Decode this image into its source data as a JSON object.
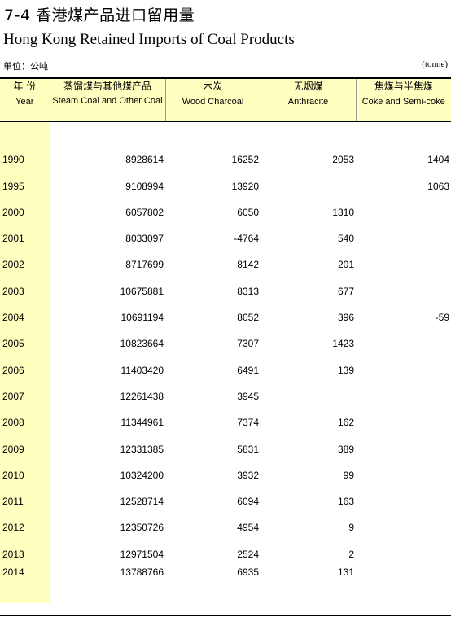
{
  "title": {
    "cn": "7-4   香港煤产品进口留用量",
    "en": "Hong Kong Retained Imports of Coal Products"
  },
  "unit": {
    "left": "单位：公吨",
    "right": "(tonne)"
  },
  "headers": [
    {
      "cn": "年 份",
      "en": "Year"
    },
    {
      "cn": "蒸馏煤与其他煤产品",
      "en": "Steam Coal and Other Coal"
    },
    {
      "cn": "木炭",
      "en": "Wood Charcoal"
    },
    {
      "cn": "无烟煤",
      "en": "Anthracite"
    },
    {
      "cn": "焦煤与半焦煤",
      "en": "Coke and Semi-coke"
    }
  ],
  "rows": [
    {
      "year": "1990",
      "steam": "8928614",
      "charcoal": "16252",
      "anthracite": "2053",
      "coke": "1404"
    },
    {
      "year": "1995",
      "steam": "9108994",
      "charcoal": "13920",
      "anthracite": "",
      "coke": "1063"
    },
    {
      "year": "2000",
      "steam": "6057802",
      "charcoal": "6050",
      "anthracite": "1310",
      "coke": ""
    },
    {
      "year": "2001",
      "steam": "8033097",
      "charcoal": "-4764",
      "anthracite": "540",
      "coke": ""
    },
    {
      "year": "2002",
      "steam": "8717699",
      "charcoal": "8142",
      "anthracite": "201",
      "coke": ""
    },
    {
      "year": "2003",
      "steam": "10675881",
      "charcoal": "8313",
      "anthracite": "677",
      "coke": ""
    },
    {
      "year": "2004",
      "steam": "10691194",
      "charcoal": "8052",
      "anthracite": "396",
      "coke": "-59"
    },
    {
      "year": "2005",
      "steam": "10823664",
      "charcoal": "7307",
      "anthracite": "1423",
      "coke": ""
    },
    {
      "year": "2006",
      "steam": "11403420",
      "charcoal": "6491",
      "anthracite": "139",
      "coke": ""
    },
    {
      "year": "2007",
      "steam": "12261438",
      "charcoal": "3945",
      "anthracite": "",
      "coke": ""
    },
    {
      "year": "2008",
      "steam": "11344961",
      "charcoal": "7374",
      "anthracite": "162",
      "coke": ""
    },
    {
      "year": "2009",
      "steam": "12331385",
      "charcoal": "5831",
      "anthracite": "389",
      "coke": ""
    },
    {
      "year": "2010",
      "steam": "10324200",
      "charcoal": "3932",
      "anthracite": "99",
      "coke": ""
    },
    {
      "year": "2011",
      "steam": "12528714",
      "charcoal": "6094",
      "anthracite": "163",
      "coke": ""
    },
    {
      "year": "2012",
      "steam": "12350726",
      "charcoal": "4954",
      "anthracite": "9",
      "coke": ""
    },
    {
      "year": "2013",
      "steam": "12971504",
      "charcoal": "2524",
      "anthracite": "2",
      "coke": ""
    },
    {
      "year": "2014",
      "steam": "13788766",
      "charcoal": "6935",
      "anthracite": "131",
      "coke": ""
    }
  ]
}
